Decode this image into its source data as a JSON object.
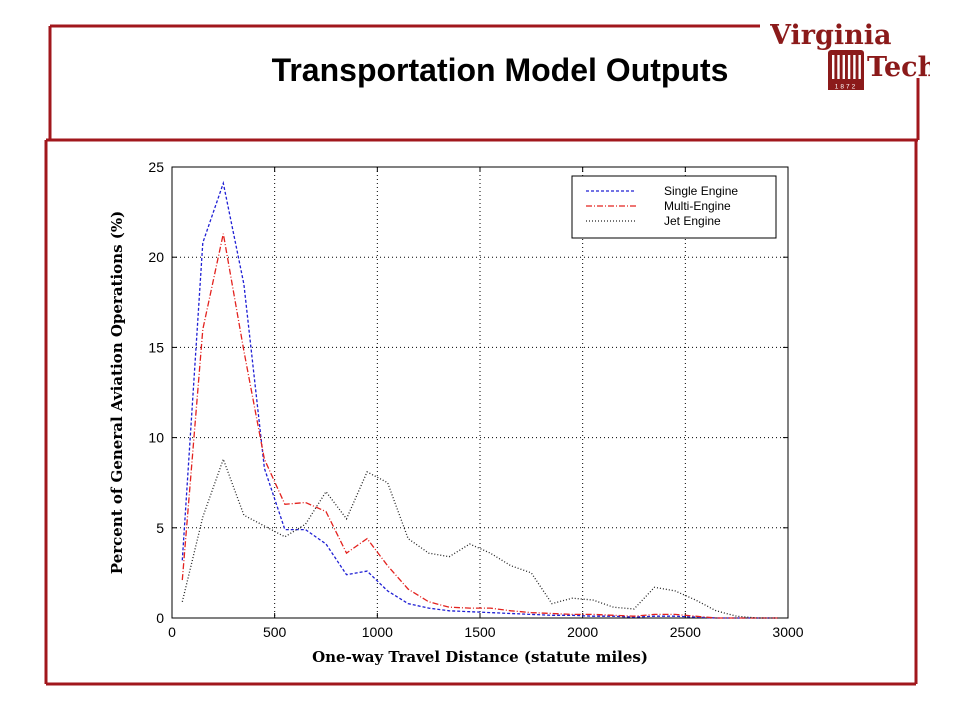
{
  "slide": {
    "title": "Transportation Model Outputs",
    "frame_color": "#a1171c"
  },
  "logo": {
    "word1": "Virginia",
    "word2": "Tech",
    "year": "1872",
    "color": "#8b1a1a"
  },
  "chart_data": {
    "type": "line",
    "title": "",
    "xlabel": "One-way Travel Distance (statute miles)",
    "ylabel": "Percent of General Aviation Operations (%)",
    "xlim": [
      0,
      3000
    ],
    "ylim": [
      0,
      25
    ],
    "xticks": [
      "0",
      "500",
      "1000",
      "1500",
      "2000",
      "2500",
      "3000"
    ],
    "yticks": [
      "0",
      "5",
      "10",
      "15",
      "20",
      "25"
    ],
    "grid": true,
    "legend_position": "top-right",
    "x": [
      50,
      150,
      250,
      350,
      450,
      550,
      650,
      750,
      850,
      950,
      1050,
      1150,
      1250,
      1350,
      1450,
      1550,
      1650,
      1750,
      1850,
      1950,
      2050,
      2150,
      2250,
      2350,
      2450,
      2550,
      2650,
      2750,
      2850,
      2950
    ],
    "series": [
      {
        "name": "Single Engine",
        "color": "#1f1fd4",
        "dash": "3,2",
        "values": [
          3.2,
          20.8,
          24.1,
          18.5,
          8.3,
          4.9,
          4.9,
          4.1,
          2.4,
          2.6,
          1.5,
          0.8,
          0.55,
          0.4,
          0.35,
          0.3,
          0.25,
          0.2,
          0.15,
          0.15,
          0.1,
          0.1,
          0.05,
          0.1,
          0.1,
          0.05,
          0.0,
          0.0,
          0.0,
          0.0
        ]
      },
      {
        "name": "Multi-Engine",
        "color": "#e3231f",
        "dash": "6,2,1,2",
        "values": [
          2.1,
          16.0,
          21.3,
          14.8,
          8.8,
          6.3,
          6.4,
          5.9,
          3.6,
          4.4,
          2.9,
          1.6,
          0.9,
          0.6,
          0.55,
          0.55,
          0.4,
          0.3,
          0.25,
          0.2,
          0.2,
          0.15,
          0.1,
          0.2,
          0.2,
          0.1,
          0.0,
          0.0,
          0.0,
          0.0
        ]
      },
      {
        "name": "Jet Engine",
        "color": "#222222",
        "dash": "1,2",
        "values": [
          0.9,
          5.6,
          8.8,
          5.7,
          5.1,
          4.5,
          5.2,
          7.0,
          5.5,
          8.1,
          7.5,
          4.4,
          3.6,
          3.4,
          4.1,
          3.6,
          2.9,
          2.5,
          0.8,
          1.1,
          1.0,
          0.6,
          0.5,
          1.7,
          1.5,
          1.0,
          0.4,
          0.1,
          0.0,
          0.0
        ]
      }
    ]
  }
}
